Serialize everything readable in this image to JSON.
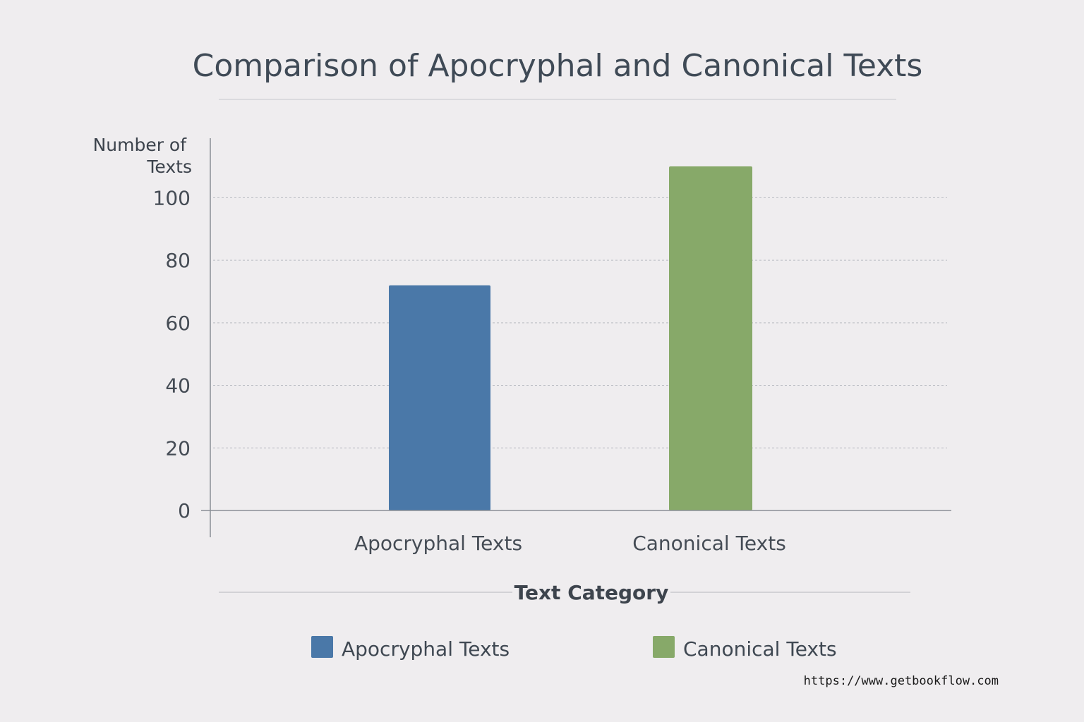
{
  "chart_data": {
    "type": "bar",
    "title": "Comparison of Apocryphal and Canonical Texts",
    "xlabel": "Text Category",
    "ylabel": "Number of Texts",
    "ylim": [
      0,
      110
    ],
    "yticks": [
      0,
      20,
      40,
      60,
      80,
      100
    ],
    "categories": [
      "Apocryphal Texts",
      "Canonical Texts"
    ],
    "values": [
      72,
      110
    ],
    "grid": true,
    "legend": {
      "placement": "bottom-center",
      "entries": [
        "Apocryphal Texts",
        "Canonical Texts"
      ]
    },
    "colors": [
      "#4a78a8",
      "#87a969"
    ]
  },
  "footer": {
    "url": "https://www.getbookflow.com"
  }
}
